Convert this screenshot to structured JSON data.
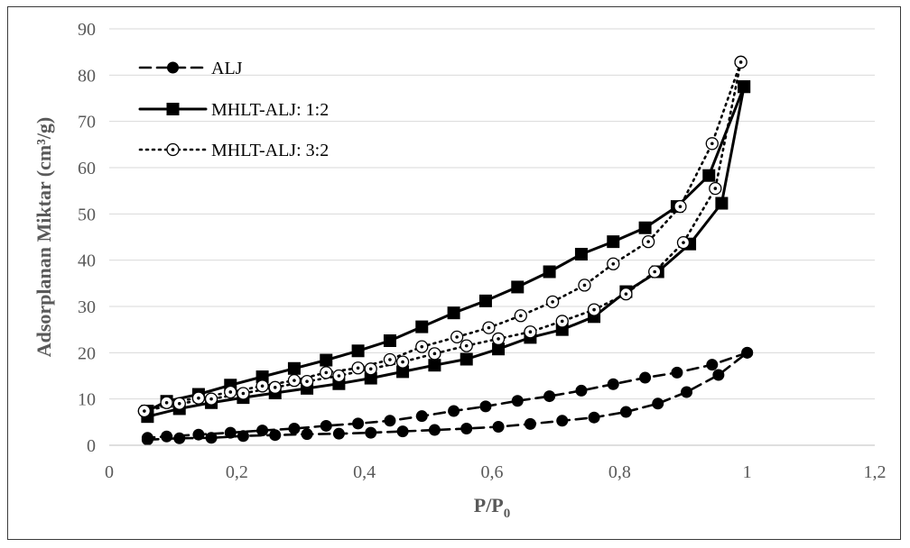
{
  "chart_data": {
    "type": "scatter",
    "xlabel": "P/P",
    "xlabel_subscript": "0",
    "ylabel": "Adsorplanan Miktar (cm³/g)",
    "xlim": [
      0,
      1.2
    ],
    "ylim": [
      0,
      90
    ],
    "x_ticks": [
      "0",
      "0,2",
      "0,4",
      "0,6",
      "0,8",
      "1",
      "1,2"
    ],
    "x_tick_values": [
      0,
      0.2,
      0.4,
      0.6,
      0.8,
      1.0,
      1.2
    ],
    "y_ticks": [
      "0",
      "10",
      "20",
      "30",
      "40",
      "50",
      "60",
      "70",
      "80",
      "90"
    ],
    "y_tick_values": [
      0,
      10,
      20,
      30,
      40,
      50,
      60,
      70,
      80,
      90
    ],
    "grid": "horizontal",
    "legend_position": "top-left",
    "series": [
      {
        "name": "ALJ",
        "line_style": "dashed",
        "marker": "filled-circle",
        "color": "#000000",
        "adsorption": {
          "x": [
            0.06,
            0.11,
            0.16,
            0.21,
            0.26,
            0.31,
            0.36,
            0.41,
            0.46,
            0.51,
            0.56,
            0.61,
            0.66,
            0.71,
            0.76,
            0.81,
            0.86,
            0.905,
            0.955,
            1.0
          ],
          "y": [
            1.2,
            1.5,
            1.6,
            2.0,
            2.2,
            2.4,
            2.5,
            2.7,
            3.0,
            3.3,
            3.6,
            4.0,
            4.6,
            5.3,
            6.0,
            7.2,
            9.0,
            11.5,
            15.2,
            20.0
          ]
        },
        "desorption": {
          "x": [
            1.0,
            0.945,
            0.89,
            0.84,
            0.79,
            0.74,
            0.69,
            0.64,
            0.59,
            0.54,
            0.49,
            0.44,
            0.39,
            0.34,
            0.29,
            0.24,
            0.19,
            0.14,
            0.09,
            0.06
          ],
          "y": [
            20.0,
            17.4,
            15.7,
            14.6,
            13.2,
            11.8,
            10.6,
            9.6,
            8.4,
            7.4,
            6.3,
            5.3,
            4.7,
            4.2,
            3.6,
            3.2,
            2.7,
            2.3,
            1.9,
            1.6
          ]
        }
      },
      {
        "name": "MHLT-ALJ: 1:2",
        "line_style": "solid",
        "marker": "filled-square",
        "color": "#000000",
        "adsorption": {
          "x": [
            0.06,
            0.11,
            0.16,
            0.21,
            0.26,
            0.31,
            0.36,
            0.41,
            0.46,
            0.51,
            0.56,
            0.61,
            0.66,
            0.71,
            0.76,
            0.81,
            0.86,
            0.91,
            0.96,
            0.995
          ],
          "y": [
            6.2,
            7.9,
            9.2,
            10.3,
            11.3,
            12.3,
            13.3,
            14.5,
            15.9,
            17.3,
            18.6,
            20.8,
            23.3,
            25.0,
            27.8,
            33.2,
            37.5,
            43.5,
            52.3,
            77.5
          ]
        },
        "desorption": {
          "x": [
            0.995,
            0.94,
            0.89,
            0.84,
            0.79,
            0.74,
            0.69,
            0.64,
            0.59,
            0.54,
            0.49,
            0.44,
            0.39,
            0.34,
            0.29,
            0.24,
            0.19,
            0.14,
            0.09,
            0.06
          ],
          "y": [
            77.5,
            58.3,
            51.6,
            47.0,
            44.0,
            41.3,
            37.5,
            34.2,
            31.2,
            28.6,
            25.6,
            22.6,
            20.4,
            18.4,
            16.6,
            14.8,
            13.0,
            11.0,
            9.5,
            7.4
          ]
        }
      },
      {
        "name": "MHLT-ALJ: 3:2",
        "line_style": "dotted",
        "marker": "open-circle-dot",
        "color": "#000000",
        "adsorption": {
          "x": [
            0.055,
            0.11,
            0.16,
            0.21,
            0.26,
            0.31,
            0.36,
            0.41,
            0.46,
            0.51,
            0.56,
            0.61,
            0.66,
            0.71,
            0.76,
            0.81,
            0.855,
            0.9,
            0.95,
            0.99
          ],
          "y": [
            7.4,
            9.0,
            10.0,
            11.2,
            12.5,
            13.8,
            15.0,
            16.5,
            18.0,
            19.8,
            21.5,
            23.0,
            24.5,
            26.8,
            29.3,
            32.7,
            37.5,
            43.8,
            55.5,
            82.8
          ]
        },
        "desorption": {
          "x": [
            0.99,
            0.945,
            0.895,
            0.845,
            0.79,
            0.745,
            0.695,
            0.645,
            0.595,
            0.545,
            0.49,
            0.44,
            0.39,
            0.34,
            0.29,
            0.24,
            0.19,
            0.14,
            0.09,
            0.055
          ],
          "y": [
            82.8,
            65.2,
            51.6,
            44.0,
            39.2,
            34.6,
            31.0,
            28.0,
            25.4,
            23.4,
            21.3,
            18.5,
            16.7,
            15.7,
            14.0,
            12.8,
            11.5,
            10.2,
            9.2,
            7.4
          ]
        }
      }
    ]
  }
}
